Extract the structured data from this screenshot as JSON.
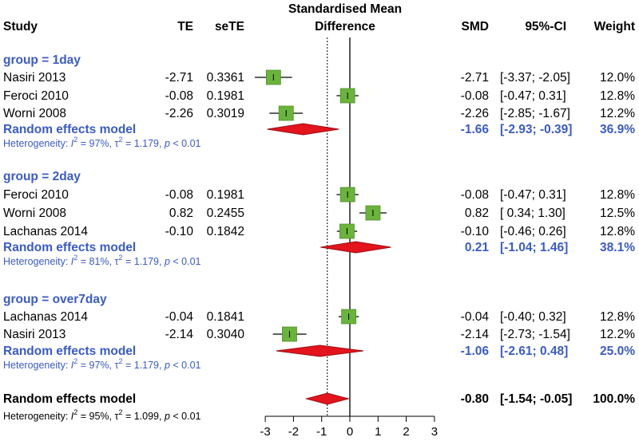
{
  "chart_data": {
    "type": "forest",
    "headers": {
      "study": "Study",
      "te": "TE",
      "sete": "seTE",
      "smd_title_1": "Standardised Mean",
      "smd_title_2": "Difference",
      "smd": "SMD",
      "ci": "95%-CI",
      "weight": "Weight"
    },
    "x_axis": {
      "min": -3,
      "max": 3,
      "ticks": [
        -3,
        -2,
        -1,
        0,
        1,
        2,
        3
      ]
    },
    "reference_line": 0,
    "overall_line": -0.8,
    "groups": [
      {
        "label": "group = 1day",
        "studies": [
          {
            "name": "Nasiri 2013",
            "te": "-2.71",
            "sete": "0.3361",
            "smd": -2.71,
            "lo": -3.37,
            "hi": -2.05,
            "ci_text": "[-3.37; -2.05]",
            "weight": "12.0%"
          },
          {
            "name": "Feroci 2010",
            "te": "-0.08",
            "sete": "0.1981",
            "smd": -0.08,
            "lo": -0.47,
            "hi": 0.31,
            "ci_text": "[-0.47;  0.31]",
            "weight": "12.8%"
          },
          {
            "name": "Worni 2008",
            "te": "-2.26",
            "sete": "0.3019",
            "smd": -2.26,
            "lo": -2.85,
            "hi": -1.67,
            "ci_text": "[-2.85; -1.67]",
            "weight": "12.2%"
          }
        ],
        "random": {
          "label": "Random effects model",
          "smd": -1.66,
          "lo": -2.93,
          "hi": -0.39,
          "smd_text": "-1.66",
          "ci_text": "[-2.93; -0.39]",
          "weight": "36.9%"
        },
        "heterogeneity": {
          "prefix": "Heterogeneity: ",
          "i2_label": "I",
          "i2_exp": "2",
          "i2_val": " = 97%, ",
          "tau_label": "τ",
          "tau_exp": "2",
          "tau_val": " = 1.179, ",
          "p_label": "p",
          "p_val": " < 0.01"
        }
      },
      {
        "label": "group = 2day",
        "studies": [
          {
            "name": "Feroci 2010",
            "te": "-0.08",
            "sete": "0.1981",
            "smd": -0.08,
            "lo": -0.47,
            "hi": 0.31,
            "ci_text": "[-0.47;  0.31]",
            "weight": "12.8%"
          },
          {
            "name": "Worni 2008",
            "te": "0.82",
            "sete": "0.2455",
            "smd": 0.82,
            "lo": 0.34,
            "hi": 1.3,
            "ci_text": "[ 0.34;  1.30]",
            "weight": "12.5%"
          },
          {
            "name": "Lachanas 2014",
            "te": "-0.10",
            "sete": "0.1842",
            "smd": -0.1,
            "lo": -0.46,
            "hi": 0.26,
            "ci_text": "[-0.46;  0.26]",
            "weight": "12.8%"
          }
        ],
        "random": {
          "label": "Random effects model",
          "smd": 0.21,
          "lo": -1.04,
          "hi": 1.46,
          "smd_text": "0.21",
          "ci_text": "[-1.04;  1.46]",
          "weight": "38.1%"
        },
        "heterogeneity": {
          "prefix": "Heterogeneity: ",
          "i2_label": "I",
          "i2_exp": "2",
          "i2_val": " = 81%, ",
          "tau_label": "τ",
          "tau_exp": "2",
          "tau_val": " = 1.179, ",
          "p_label": "p",
          "p_val": " < 0.01"
        }
      },
      {
        "label": "group = over7day",
        "studies": [
          {
            "name": "Lachanas 2014",
            "te": "-0.04",
            "sete": "0.1841",
            "smd": -0.04,
            "lo": -0.4,
            "hi": 0.32,
            "ci_text": "[-0.40;  0.32]",
            "weight": "12.8%"
          },
          {
            "name": "Nasiri 2013",
            "te": "-2.14",
            "sete": "0.3040",
            "smd": -2.14,
            "lo": -2.73,
            "hi": -1.54,
            "ci_text": "[-2.73; -1.54]",
            "weight": "12.2%"
          }
        ],
        "random": {
          "label": "Random effects model",
          "smd": -1.06,
          "lo": -2.61,
          "hi": 0.48,
          "smd_text": "-1.06",
          "ci_text": "[-2.61;  0.48]",
          "weight": "25.0%"
        },
        "heterogeneity": {
          "prefix": "Heterogeneity: ",
          "i2_label": "I",
          "i2_exp": "2",
          "i2_val": " = 97%, ",
          "tau_label": "τ",
          "tau_exp": "2",
          "tau_val": " = 1.179, ",
          "p_label": "p",
          "p_val": " < 0.01"
        }
      }
    ],
    "overall": {
      "label": "Random effects model",
      "smd": -0.8,
      "lo": -1.54,
      "hi": -0.05,
      "smd_text": "-0.80",
      "ci_text": "[-1.54; -0.05]",
      "weight": "100.0%",
      "heterogeneity": {
        "prefix": "Heterogeneity: ",
        "i2_label": "I",
        "i2_exp": "2",
        "i2_val": " = 95%, ",
        "tau_label": "τ",
        "tau_exp": "2",
        "tau_val": " = 1.099, ",
        "p_label": "p",
        "p_val": " < 0.01"
      }
    },
    "colors": {
      "square": "#6ab43c",
      "square_edge": "#4f8f2a",
      "diamond": "#e3141c",
      "diamond_edge": "#9b0f14",
      "group_text": "#3a5bc7"
    }
  }
}
